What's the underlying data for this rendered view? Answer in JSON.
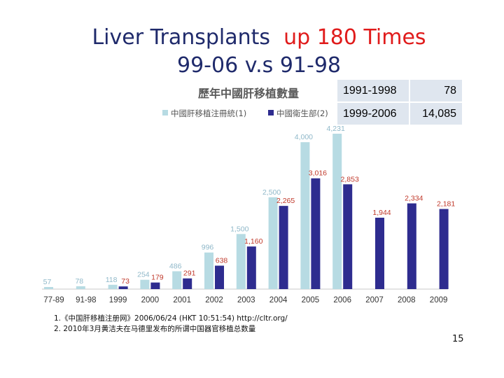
{
  "slide": {
    "title_line1_a": "Liver Transplants",
    "title_line1_b": "up 180 Times",
    "title_line2": "99-06 v.s 91-98",
    "notes": [
      "1.《中国肝移植注册网》2006/06/24 (HKT 10:51:54) http://cltr.org/",
      "2. 2010年3月黄洁夫在马德里发布的所谓中国器官移植总数量"
    ],
    "page_number": "15",
    "comparison_table": [
      {
        "period": "1991-1998",
        "value": "78"
      },
      {
        "period": "1999-2006",
        "value": "14,085"
      }
    ]
  },
  "chart_data": {
    "type": "bar",
    "title": "歷年中國肝移植數量",
    "categories": [
      "77-89",
      "91-98",
      "1999",
      "2000",
      "2001",
      "2002",
      "2003",
      "2004",
      "2005",
      "2006",
      "2007",
      "2008",
      "2009"
    ],
    "series": [
      {
        "name": "中國肝移植注冊統(1)",
        "color": "#b7dbe3",
        "values": [
          57,
          78,
          118,
          254,
          486,
          996,
          1500,
          2500,
          4000,
          4231,
          null,
          null,
          null
        ],
        "labels": [
          "57",
          "78",
          "118",
          "254",
          "486",
          "996",
          "1,500",
          "2,500",
          "4,000",
          "4,231",
          "",
          "",
          ""
        ],
        "label_color": "#8fb8c9"
      },
      {
        "name": "中國衛生部(2)",
        "color": "#2e2c8f",
        "values": [
          null,
          null,
          73,
          179,
          291,
          638,
          1160,
          2265,
          3016,
          2853,
          1944,
          2334,
          2181
        ],
        "labels": [
          "",
          "",
          "73",
          "179",
          "291",
          "638",
          "1,160",
          "2,265",
          "3,016",
          "2,853",
          "1,944",
          "2,334",
          "2,181"
        ],
        "label_color": "#c0392b"
      }
    ],
    "ylim": [
      0,
      4300
    ],
    "xlabel": "",
    "ylabel": "",
    "legend_position": "top",
    "grid": false
  }
}
